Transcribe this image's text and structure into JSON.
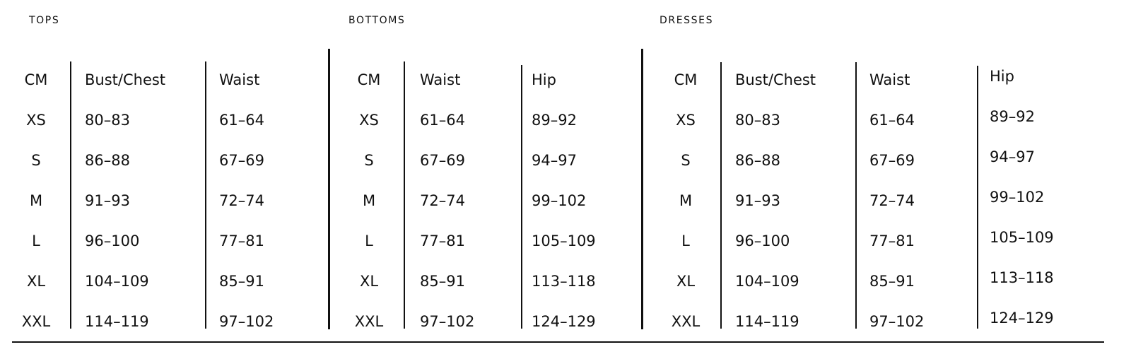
{
  "sections": [
    {
      "title": "TOPS",
      "headers": [
        "CM",
        "Bust/Chest",
        "Waist"
      ],
      "rows": [
        [
          "XS",
          "80–83",
          "61–64"
        ],
        [
          "S",
          "86–88",
          "67–69"
        ],
        [
          "M",
          "91–93",
          "72–74"
        ],
        [
          "L",
          "96–100",
          "77–81"
        ],
        [
          "XL",
          "104–109",
          "85–91"
        ],
        [
          "XXL",
          "114–119",
          "97–102"
        ]
      ]
    },
    {
      "title": "BOTTOMS",
      "headers": [
        "CM",
        "Waist",
        "Hip"
      ],
      "rows": [
        [
          "XS",
          "61–64",
          "89–92"
        ],
        [
          "S",
          "67–69",
          "94–97"
        ],
        [
          "M",
          "72–74",
          "99–102"
        ],
        [
          "L",
          "77–81",
          "105–109"
        ],
        [
          "XL",
          "85–91",
          "113–118"
        ],
        [
          "XXL",
          "97–102",
          "124–129"
        ]
      ]
    },
    {
      "title": "DRESSES",
      "headers": [
        "CM",
        "Bust/Chest",
        "Waist",
        "Hip"
      ],
      "rows": [
        [
          "XS",
          "80–83",
          "61–64",
          "89–92"
        ],
        [
          "S",
          "86–88",
          "67–69",
          "94–97"
        ],
        [
          "M",
          "91–93",
          "72–74",
          "99–102"
        ],
        [
          "L",
          "96–100",
          "77–81",
          "105–109"
        ],
        [
          "XL",
          "104–109",
          "85–91",
          "113–118"
        ],
        [
          "XXL",
          "114–119",
          "97–102",
          "124–129"
        ]
      ]
    }
  ]
}
